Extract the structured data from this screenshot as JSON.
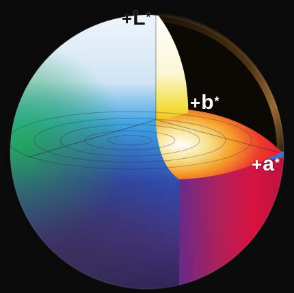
{
  "axes": {
    "L": {
      "sign": "+",
      "symbol": "L",
      "star": "*"
    },
    "b": {
      "sign": "+",
      "symbol": "b",
      "star": "*"
    },
    "a": {
      "sign": "+",
      "symbol": "a",
      "star": "*"
    }
  },
  "colors": {
    "background": "#0a0a0a",
    "white_top": "#f4f6fa",
    "cyan": "#3fa3e3",
    "blue": "#2e4fb8",
    "violet": "#4a3a8c",
    "green": "#2aa860",
    "yellow": "#f1d72a",
    "orange": "#f08a1a",
    "red": "#e0103a",
    "magenta": "#d91858",
    "brown": "#7a4a18"
  }
}
